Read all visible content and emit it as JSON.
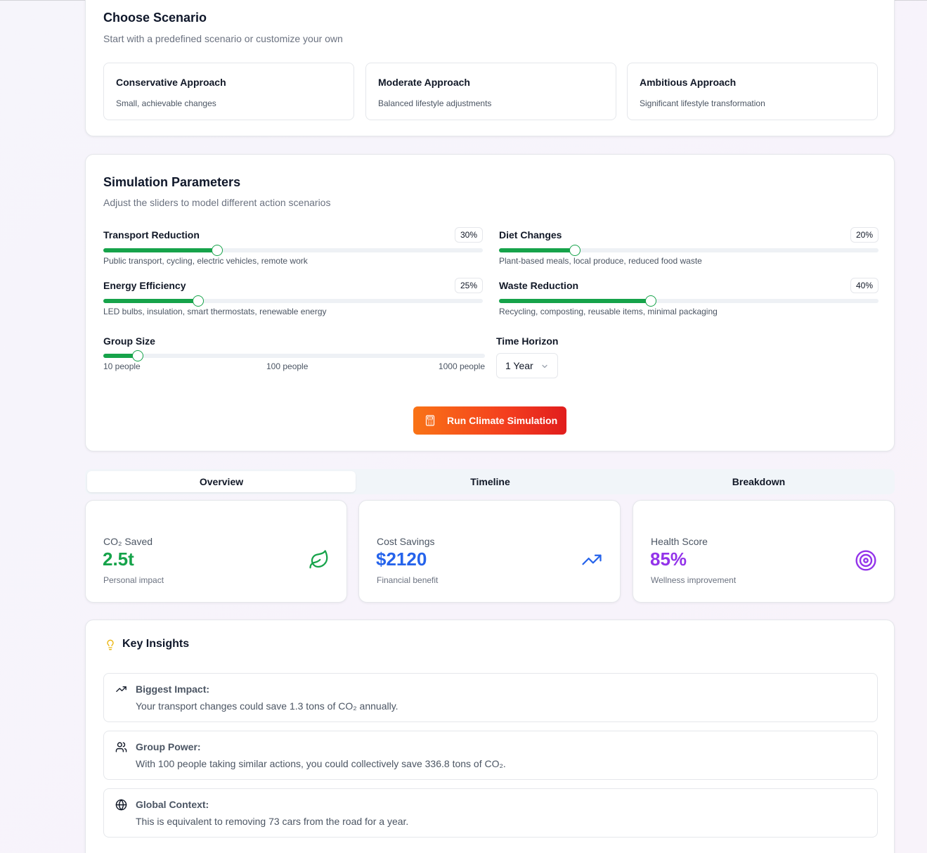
{
  "scenario": {
    "title": "Choose Scenario",
    "subtitle": "Start with a predefined scenario or customize your own",
    "options": [
      {
        "title": "Conservative Approach",
        "desc": "Small, achievable changes"
      },
      {
        "title": "Moderate Approach",
        "desc": "Balanced lifestyle adjustments"
      },
      {
        "title": "Ambitious Approach",
        "desc": "Significant lifestyle transformation"
      }
    ]
  },
  "params": {
    "title": "Simulation Parameters",
    "subtitle": "Adjust the sliders to model different action scenarios",
    "sliders": [
      {
        "label": "Transport Reduction",
        "value_text": "30%",
        "value": 30,
        "desc": "Public transport, cycling, electric vehicles, remote work"
      },
      {
        "label": "Diet Changes",
        "value_text": "20%",
        "value": 20,
        "desc": "Plant-based meals, local produce, reduced food waste"
      },
      {
        "label": "Energy Efficiency",
        "value_text": "25%",
        "value": 25,
        "desc": "LED bulbs, insulation, smart thermostats, renewable energy"
      },
      {
        "label": "Waste Reduction",
        "value_text": "40%",
        "value": 40,
        "desc": "Recycling, composting, reusable items, minimal packaging"
      }
    ],
    "group": {
      "label": "Group Size",
      "value": 100,
      "min_label": "10 people",
      "mid_label": "100 people",
      "max_label": "1000 people"
    },
    "time": {
      "label": "Time Horizon",
      "value": "1 Year"
    },
    "run_label": "Run Climate Simulation"
  },
  "tabs": [
    {
      "label": "Overview",
      "active": true
    },
    {
      "label": "Timeline",
      "active": false
    },
    {
      "label": "Breakdown",
      "active": false
    }
  ],
  "stats": [
    {
      "label": "CO₂ Saved",
      "value": "2.5t",
      "sub": "Personal impact",
      "color": "#16a34a",
      "icon": "leaf-icon"
    },
    {
      "label": "Cost Savings",
      "value": "$2120",
      "sub": "Financial benefit",
      "color": "#2563eb",
      "icon": "trending-up-icon"
    },
    {
      "label": "Health Score",
      "value": "85%",
      "sub": "Wellness improvement",
      "color": "#9333ea",
      "icon": "target-icon"
    }
  ],
  "insights": {
    "title": "Key Insights",
    "items": [
      {
        "title": "Biggest Impact:",
        "desc": "Your transport changes could save 1.3 tons of CO₂ annually.",
        "icon": "trending-up-icon"
      },
      {
        "title": "Group Power:",
        "desc": "With 100 people taking similar actions, you could collectively save 336.8 tons of CO₂.",
        "icon": "users-icon"
      },
      {
        "title": "Global Context:",
        "desc": "This is equivalent to removing 73 cars from the road for a year.",
        "icon": "globe-icon"
      }
    ]
  },
  "colors": {
    "accent_green": "#16a34a",
    "button_start": "#f97316",
    "button_end": "#e11d1d"
  }
}
